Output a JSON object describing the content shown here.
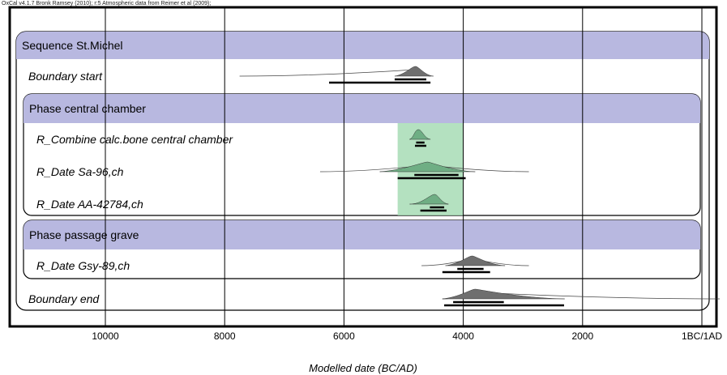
{
  "header": {
    "credit": "OxCal v4.1.7 Bronk Ramsey (2010); r:5 Atmospheric data from Reimer et al (2009);"
  },
  "colors": {
    "band": "#b8b8e0",
    "highlight": "#a7dcb5",
    "prior": "#ffffff",
    "posterior": "#6f6f6f",
    "posterior_green": "#6fae84",
    "axis": "#000000"
  },
  "chart_data": {
    "type": "oxcal-multiplot",
    "title": "",
    "xlabel": "Modelled date (BC/AD)",
    "x_direction": "decreasing BC toward AD",
    "xlim": [
      11600,
      -200
    ],
    "x_ticks": [
      10000,
      8000,
      6000,
      4000,
      2000,
      0
    ],
    "x_tick_labels": [
      "10000",
      "8000",
      "6000",
      "4000",
      "2000",
      "1BC/1AD"
    ],
    "highlight_range": [
      5100,
      4000
    ],
    "groups": [
      {
        "type": "sequence",
        "label": "Sequence St.Michel"
      },
      {
        "type": "phase",
        "label": "Phase central chamber"
      },
      {
        "type": "phase",
        "label": "Phase passage grave"
      }
    ],
    "rows": [
      {
        "label": "Boundary start",
        "group": "Sequence St.Michel",
        "prior_range": [
          7750,
          4550
        ],
        "posterior_peak": 4800,
        "posterior_range": [
          5150,
          4500
        ],
        "hpd68": [
          5150,
          4620
        ],
        "hpd95": [
          6250,
          4550
        ]
      },
      {
        "label": "R_Combine calc.bone central chamber",
        "group": "Phase central chamber",
        "prior_range": [
          4900,
          4600
        ],
        "posterior_peak": 4750,
        "posterior_range": [
          4900,
          4550
        ],
        "hpd68": [
          4790,
          4650
        ],
        "hpd95": [
          4810,
          4620
        ]
      },
      {
        "label": "R_Date Sa-96,ch",
        "group": "Phase central chamber",
        "prior_range": [
          6400,
          2900
        ],
        "posterior_peak": 4600,
        "posterior_range": [
          5400,
          3800
        ],
        "hpd68": [
          4820,
          4080
        ],
        "hpd95": [
          5100,
          3960
        ]
      },
      {
        "label": "R_Date AA-42784,ch",
        "group": "Phase central chamber",
        "prior_range": [
          4900,
          4250
        ],
        "posterior_peak": 4480,
        "posterior_range": [
          4850,
          4250
        ],
        "hpd68": [
          4560,
          4320
        ],
        "hpd95": [
          4720,
          4280
        ]
      },
      {
        "label": "R_Date Gsy-89,ch",
        "group": "Phase passage grave",
        "prior_range": [
          4700,
          2900
        ],
        "posterior_peak": 3850,
        "posterior_range": [
          4300,
          3300
        ],
        "hpd68": [
          4100,
          3660
        ],
        "hpd95": [
          4350,
          3550
        ]
      },
      {
        "label": "Boundary end",
        "group": "Sequence St.Michel",
        "prior_range": [
          4350,
          -300
        ],
        "posterior_peak": 3800,
        "posterior_range": [
          4350,
          2300
        ],
        "hpd68": [
          4170,
          3320
        ],
        "hpd95": [
          4320,
          2310
        ]
      }
    ]
  }
}
